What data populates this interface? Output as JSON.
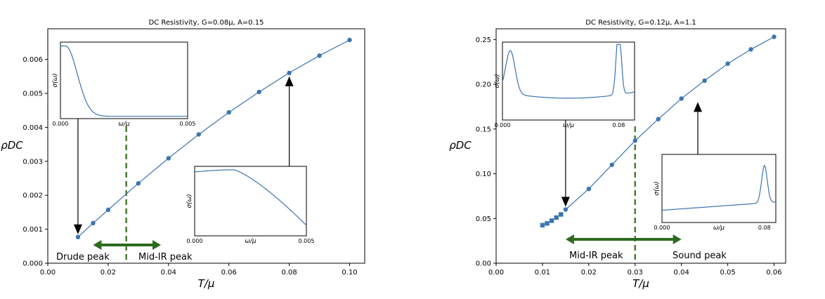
{
  "chart_data": [
    {
      "type": "line",
      "title": "DC Resistivity, G=0.08μ, A=0.15",
      "xlabel": "T/μ",
      "ylabel": "ρDC",
      "xlim": [
        0.0,
        0.105
      ],
      "ylim": [
        0.0,
        0.0069
      ],
      "xticks": [
        "0.00",
        "0.02",
        "0.04",
        "0.06",
        "0.08",
        "0.10"
      ],
      "yticks": [
        "0.000",
        "0.001",
        "0.002",
        "0.003",
        "0.004",
        "0.005",
        "0.006"
      ],
      "series": [
        {
          "marker": "circle",
          "x": [
            0.01,
            0.015,
            0.02,
            0.03,
            0.04,
            0.05,
            0.06,
            0.07,
            0.08,
            0.09,
            0.1
          ],
          "y": [
            0.00077,
            0.00118,
            0.00157,
            0.00235,
            0.00309,
            0.00379,
            0.00444,
            0.00504,
            0.0056,
            0.00611,
            0.00657
          ]
        }
      ],
      "vline_x": 0.026,
      "annotations": [
        "Drude peak",
        "Mid-IR peak"
      ],
      "insets": [
        {
          "xtick_labels": [
            "0.000",
            "0.005"
          ],
          "xlabel": "ω/μ",
          "ylabel": "σ(ω)",
          "shape": "drude"
        },
        {
          "xtick_labels": [
            "0.000",
            "0.005"
          ],
          "xlabel": "ω/μ",
          "ylabel": "σ(ω)",
          "shape": "broad"
        }
      ]
    },
    {
      "type": "line",
      "title": "DC Resistivity, G=0.12μ, A=1.1",
      "xlabel": "T/μ",
      "ylabel": "ρDC",
      "xlim": [
        0.0,
        0.0625
      ],
      "ylim": [
        0.0,
        0.262
      ],
      "xticks": [
        "0.00",
        "0.01",
        "0.02",
        "0.03",
        "0.04",
        "0.05",
        "0.06"
      ],
      "yticks": [
        "0.00",
        "0.05",
        "0.10",
        "0.15",
        "0.20",
        "0.25"
      ],
      "series": [
        {
          "marker": "circle",
          "x": [
            0.015,
            0.02,
            0.025,
            0.03,
            0.035,
            0.04,
            0.045,
            0.05,
            0.055,
            0.06
          ],
          "y": [
            0.06,
            0.083,
            0.11,
            0.137,
            0.161,
            0.184,
            0.204,
            0.223,
            0.239,
            0.253
          ]
        },
        {
          "marker": "square",
          "x": [
            0.01,
            0.011,
            0.012,
            0.013,
            0.014
          ],
          "y": [
            0.0425,
            0.0445,
            0.0475,
            0.051,
            0.0545
          ]
        }
      ],
      "vline_x": 0.03,
      "annotations": [
        "Mid-IR peak",
        "Sound peak"
      ],
      "insets": [
        {
          "xtick_labels": [
            "0.000",
            "0.08"
          ],
          "xlabel": "ω/μ",
          "ylabel": "σ(ω)",
          "shape": "twopeak"
        },
        {
          "xtick_labels": [
            "0.000",
            "0.08"
          ],
          "xlabel": "ω/μ",
          "ylabel": "σ(ω)",
          "shape": "sound"
        }
      ]
    }
  ]
}
